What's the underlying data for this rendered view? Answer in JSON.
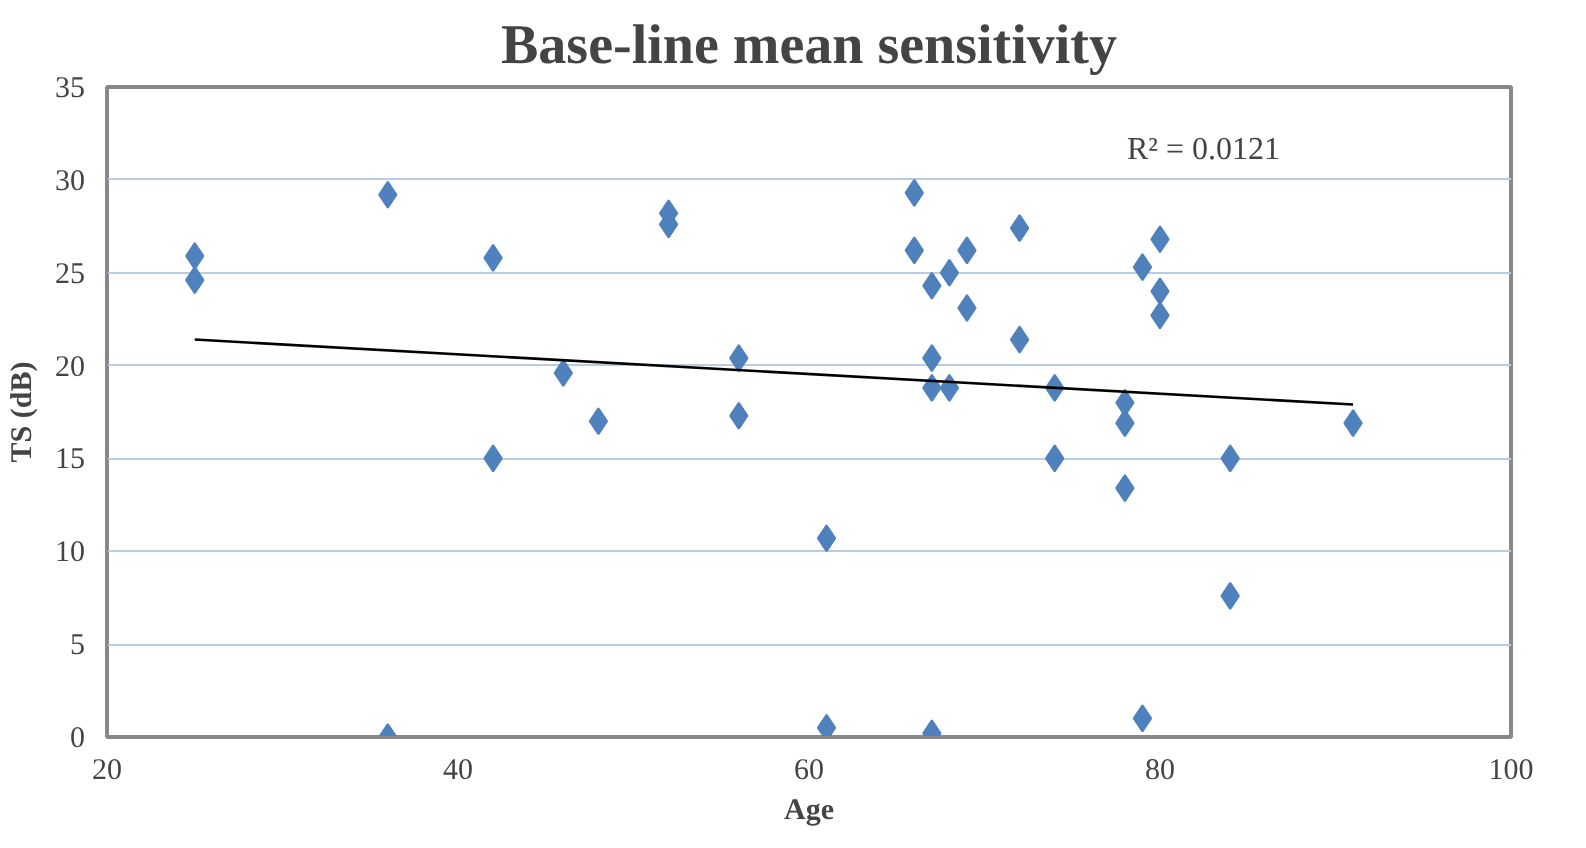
{
  "chart_data": {
    "type": "scatter",
    "title": "Base-line mean sensitivity",
    "xlabel": "Age",
    "ylabel": "TS (dB)",
    "annotations": [
      "R² = 0.0121"
    ],
    "marker": "diamond",
    "grid": "y",
    "xlim": [
      20,
      100
    ],
    "xticks": [
      20,
      40,
      60,
      80,
      100
    ],
    "ylim": [
      0,
      35
    ],
    "yticks": [
      0,
      5,
      10,
      15,
      20,
      25,
      30,
      35
    ],
    "series": [
      {
        "color": "#4f81bd",
        "x": [
          25,
          25,
          36,
          36,
          42,
          42,
          46,
          48,
          52,
          52,
          56,
          56,
          61,
          61,
          66,
          66,
          67,
          67,
          67,
          67,
          68,
          68,
          69,
          69,
          72,
          72,
          74,
          74,
          78,
          78,
          78,
          79,
          79,
          80,
          80,
          80,
          84,
          84,
          91
        ],
        "values": [
          25.9,
          24.6,
          29.2,
          0,
          25.8,
          15,
          19.6,
          17,
          28.2,
          27.6,
          20.4,
          17.3,
          10.7,
          0.5,
          29.3,
          26.2,
          24.3,
          20.4,
          18.8,
          0.2,
          25,
          18.8,
          26.2,
          23.1,
          27.4,
          21.4,
          18.8,
          15,
          18,
          16.9,
          13.4,
          25.3,
          1,
          26.8,
          24,
          22.7,
          15,
          7.6,
          16.9
        ]
      },
      {
        "type": "line",
        "color": "#000000",
        "marker": "none",
        "x": [
          25,
          91
        ],
        "values": [
          21.4,
          17.9
        ]
      }
    ]
  }
}
